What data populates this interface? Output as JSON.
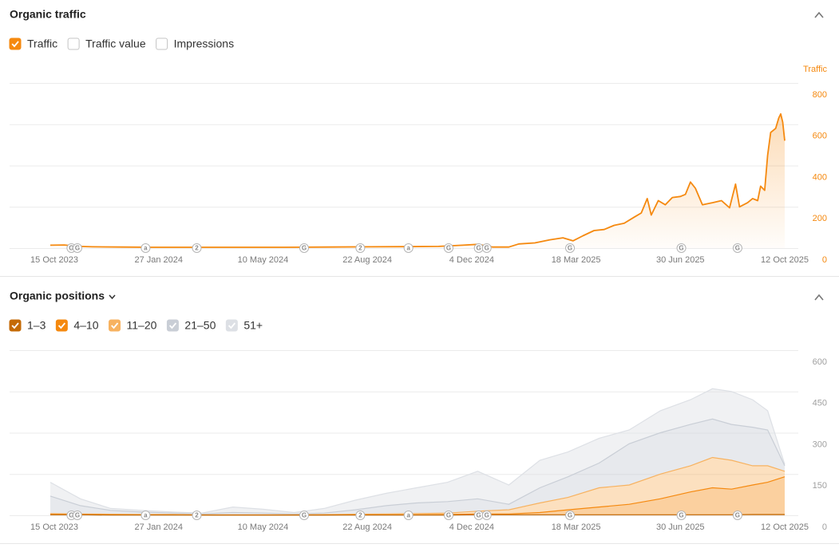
{
  "panels": [
    {
      "title": "Organic traffic",
      "toggles": [
        {
          "label": "Traffic",
          "checked": true,
          "color": "#f5890f"
        },
        {
          "label": "Traffic value",
          "checked": false
        },
        {
          "label": "Impressions",
          "checked": false
        }
      ]
    },
    {
      "title": "Organic positions"
    }
  ],
  "chart_data": [
    {
      "type": "area",
      "y_label": "Traffic",
      "color": "#f5890f",
      "tick_color": "#f5890f",
      "grid": true,
      "x": [
        "2023-10-11",
        "2023-10-25",
        "2023-11-08",
        "2023-11-22",
        "2023-12-20",
        "2024-01-20",
        "2024-03-01",
        "2024-04-15",
        "2024-06-01",
        "2024-07-15",
        "2024-08-25",
        "2024-10-01",
        "2024-11-01",
        "2024-11-25",
        "2024-12-10",
        "2024-12-25",
        "2025-01-10",
        "2025-01-20",
        "2025-02-05",
        "2025-02-20",
        "2025-03-05",
        "2025-03-15",
        "2025-03-25",
        "2025-04-05",
        "2025-04-15",
        "2025-04-25",
        "2025-05-05",
        "2025-05-15",
        "2025-05-22",
        "2025-05-28",
        "2025-06-01",
        "2025-06-08",
        "2025-06-15",
        "2025-06-22",
        "2025-06-30",
        "2025-07-05",
        "2025-07-10",
        "2025-07-15",
        "2025-07-22",
        "2025-08-01",
        "2025-08-10",
        "2025-08-18",
        "2025-08-24",
        "2025-08-28",
        "2025-09-05",
        "2025-09-10",
        "2025-09-15",
        "2025-09-18",
        "2025-09-22",
        "2025-09-25",
        "2025-09-28",
        "2025-10-03",
        "2025-10-06",
        "2025-10-08",
        "2025-10-10",
        "2025-10-12"
      ],
      "values": [
        14,
        15,
        8,
        6,
        5,
        4,
        4,
        4,
        4,
        5,
        6,
        7,
        8,
        14,
        18,
        5,
        5,
        20,
        25,
        40,
        50,
        35,
        60,
        85,
        90,
        110,
        120,
        150,
        170,
        240,
        160,
        230,
        210,
        245,
        250,
        260,
        320,
        290,
        210,
        220,
        230,
        195,
        310,
        200,
        220,
        240,
        230,
        300,
        280,
        450,
        560,
        580,
        630,
        650,
        610,
        520
      ],
      "xlim": [
        "2023-10-11",
        "2025-10-12"
      ],
      "xticks": [
        {
          "value": "2023-10-15",
          "label": "15 Oct 2023"
        },
        {
          "value": "2024-01-27",
          "label": "27 Jan 2024"
        },
        {
          "value": "2024-05-10",
          "label": "10 May 2024"
        },
        {
          "value": "2024-08-22",
          "label": "22 Aug 2024"
        },
        {
          "value": "2024-12-04",
          "label": "4 Dec 2024"
        },
        {
          "value": "2025-03-18",
          "label": "18 Mar 2025"
        },
        {
          "value": "2025-06-30",
          "label": "30 Jun 2025"
        },
        {
          "value": "2025-10-12",
          "label": "12 Oct 2025"
        }
      ],
      "ylim": [
        0,
        800
      ],
      "yticks": [
        0,
        200,
        400,
        600,
        800
      ],
      "annotations": [
        {
          "x": "2023-11-01",
          "label": "G"
        },
        {
          "x": "2023-11-07",
          "label": "G"
        },
        {
          "x": "2024-01-14",
          "label": "a"
        },
        {
          "x": "2024-03-05",
          "label": "2"
        },
        {
          "x": "2024-06-20",
          "label": "G"
        },
        {
          "x": "2024-08-15",
          "label": "2"
        },
        {
          "x": "2024-10-02",
          "label": "a"
        },
        {
          "x": "2024-11-11",
          "label": "G"
        },
        {
          "x": "2024-12-11",
          "label": "G"
        },
        {
          "x": "2024-12-19",
          "label": "G"
        },
        {
          "x": "2025-03-12",
          "label": "G"
        },
        {
          "x": "2025-07-01",
          "label": "G"
        },
        {
          "x": "2025-08-26",
          "label": "G"
        }
      ]
    },
    {
      "type": "stacked_area",
      "tick_color": "#a0a0a0",
      "grid": true,
      "x": [
        "2023-10-11",
        "2023-11-10",
        "2023-12-10",
        "2024-01-10",
        "2024-02-10",
        "2024-03-10",
        "2024-04-10",
        "2024-05-10",
        "2024-06-10",
        "2024-07-10",
        "2024-08-10",
        "2024-09-10",
        "2024-10-10",
        "2024-11-10",
        "2024-12-10",
        "2025-01-10",
        "2025-02-10",
        "2025-03-10",
        "2025-04-10",
        "2025-05-10",
        "2025-06-10",
        "2025-07-10",
        "2025-08-01",
        "2025-08-20",
        "2025-09-10",
        "2025-09-25",
        "2025-10-12"
      ],
      "series": [
        {
          "name": "1–3",
          "color": "#c46a05",
          "values": [
            2,
            2,
            1,
            1,
            1,
            1,
            1,
            1,
            1,
            1,
            1,
            1,
            1,
            1,
            2,
            2,
            2,
            2,
            2,
            2,
            2,
            2,
            2,
            2,
            3,
            3,
            3
          ]
        },
        {
          "name": "4–10",
          "color": "#f5890f",
          "values": [
            1,
            1,
            1,
            1,
            1,
            0,
            0,
            0,
            0,
            0,
            1,
            1,
            1,
            2,
            3,
            3,
            8,
            18,
            28,
            38,
            58,
            83,
            98,
            93,
            107,
            117,
            137
          ]
        },
        {
          "name": "11–20",
          "color": "#f7b260",
          "values": [
            3,
            2,
            2,
            1,
            1,
            1,
            1,
            1,
            1,
            2,
            2,
            3,
            4,
            5,
            10,
            15,
            35,
            45,
            70,
            70,
            90,
            95,
            110,
            105,
            70,
            60,
            20
          ]
        },
        {
          "name": "21–50",
          "color": "#c9ced6",
          "values": [
            64,
            30,
            14,
            9,
            5,
            3,
            8,
            6,
            3,
            5,
            16,
            30,
            39,
            42,
            45,
            20,
            55,
            75,
            90,
            150,
            150,
            150,
            140,
            130,
            140,
            130,
            20
          ]
        },
        {
          "name": "51+",
          "color": "#dde0e5",
          "values": [
            50,
            25,
            7,
            6,
            4,
            3,
            20,
            14,
            5,
            17,
            35,
            45,
            55,
            70,
            100,
            70,
            100,
            90,
            90,
            50,
            80,
            90,
            110,
            120,
            100,
            70,
            5
          ]
        }
      ],
      "xlim": [
        "2023-10-11",
        "2025-10-12"
      ],
      "xticks": [
        {
          "value": "2023-10-15",
          "label": "15 Oct 2023"
        },
        {
          "value": "2024-01-27",
          "label": "27 Jan 2024"
        },
        {
          "value": "2024-05-10",
          "label": "10 May 2024"
        },
        {
          "value": "2024-08-22",
          "label": "22 Aug 2024"
        },
        {
          "value": "2024-12-04",
          "label": "4 Dec 2024"
        },
        {
          "value": "2025-03-18",
          "label": "18 Mar 2025"
        },
        {
          "value": "2025-06-30",
          "label": "30 Jun 2025"
        },
        {
          "value": "2025-10-12",
          "label": "12 Oct 2025"
        }
      ],
      "ylim": [
        0,
        600
      ],
      "yticks": [
        0,
        150,
        300,
        450,
        600
      ],
      "annotations": [
        {
          "x": "2023-11-01",
          "label": "G"
        },
        {
          "x": "2023-11-07",
          "label": "G"
        },
        {
          "x": "2024-01-14",
          "label": "a"
        },
        {
          "x": "2024-03-05",
          "label": "2"
        },
        {
          "x": "2024-06-20",
          "label": "G"
        },
        {
          "x": "2024-08-15",
          "label": "2"
        },
        {
          "x": "2024-10-02",
          "label": "a"
        },
        {
          "x": "2024-11-11",
          "label": "G"
        },
        {
          "x": "2024-12-11",
          "label": "G"
        },
        {
          "x": "2024-12-19",
          "label": "G"
        },
        {
          "x": "2025-03-12",
          "label": "G"
        },
        {
          "x": "2025-07-01",
          "label": "G"
        },
        {
          "x": "2025-08-26",
          "label": "G"
        }
      ]
    }
  ]
}
